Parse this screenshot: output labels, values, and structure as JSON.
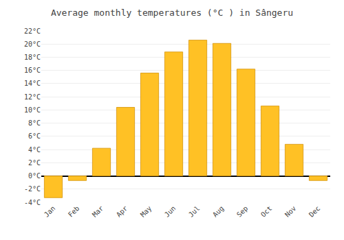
{
  "chart_data": {
    "type": "bar",
    "title": "Average monthly temperatures (°C ) in Sângeru",
    "categories": [
      "Jan",
      "Feb",
      "Mar",
      "Apr",
      "May",
      "Jun",
      "Jul",
      "Aug",
      "Sep",
      "Oct",
      "Nov",
      "Dec"
    ],
    "values": [
      -3.3,
      -0.7,
      4.2,
      10.4,
      15.6,
      18.8,
      20.6,
      20.1,
      16.2,
      10.6,
      4.8,
      -0.7
    ],
    "color": "#FFC125",
    "ylim": [
      -4,
      22
    ],
    "yticks": [
      {
        "value": -4,
        "label": "-4°C"
      },
      {
        "value": -2,
        "label": "-2°C"
      },
      {
        "value": 0,
        "label": "0°C"
      },
      {
        "value": 2,
        "label": "2°C"
      },
      {
        "value": 4,
        "label": "4°C"
      },
      {
        "value": 6,
        "label": "6°C"
      },
      {
        "value": 8,
        "label": "8°C"
      },
      {
        "value": 10,
        "label": "10°C"
      },
      {
        "value": 12,
        "label": "12°C"
      },
      {
        "value": 14,
        "label": "14°C"
      },
      {
        "value": 16,
        "label": "16°C"
      },
      {
        "value": 18,
        "label": "18°C"
      },
      {
        "value": 20,
        "label": "20°C"
      },
      {
        "value": 22,
        "label": "22°C"
      }
    ],
    "grid": true
  }
}
